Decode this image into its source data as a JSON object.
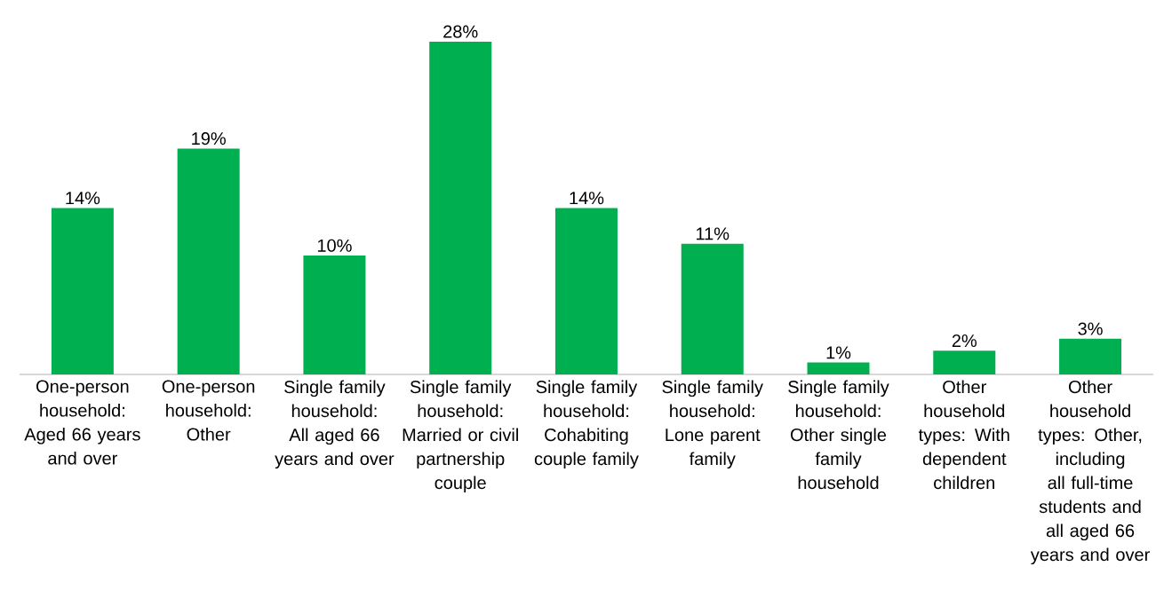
{
  "chart_data": {
    "type": "bar",
    "categories": [
      "One-person household: Aged 66 years and over",
      "One-person household: Other",
      "Single family household: All aged 66 years and over",
      "Single family household: Married or civil partnership couple",
      "Single family household: Cohabiting couple family",
      "Single family household: Lone parent family",
      "Single family household: Other single family household",
      "Other household types: With dependent children",
      "Other household types: Other, including all full-time students and all aged 66 years and over"
    ],
    "values": [
      14,
      19,
      10,
      28,
      14,
      11,
      1,
      2,
      3
    ],
    "value_labels": [
      "14%",
      "19%",
      "10%",
      "28%",
      "14%",
      "11%",
      "1%",
      "2%",
      "3%"
    ],
    "color": "#00b050"
  }
}
